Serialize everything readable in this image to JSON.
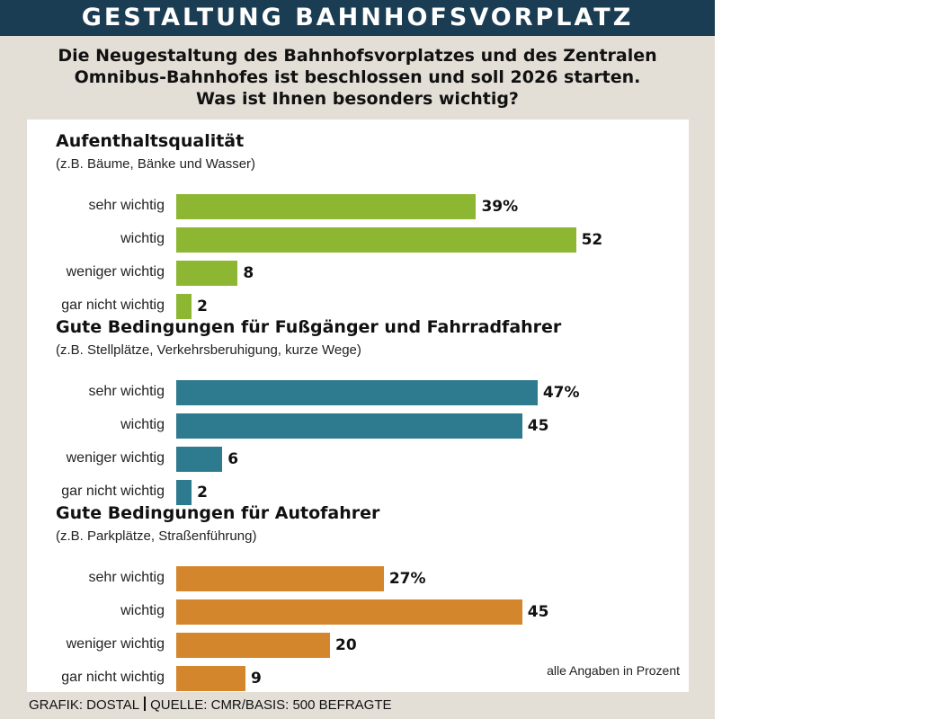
{
  "header": {
    "title": "GESTALTUNG BAHNHOFSVORPLATZ",
    "subtitle_lines": [
      "Die Neugestaltung des Bahnhofsvorplatzes und des Zentralen",
      "Omnibus-Bahnhofes ist beschlossen und soll 2026 starten.",
      "Was ist Ihnen besonders wichtig?"
    ]
  },
  "chart_data": {
    "type": "bar",
    "orientation": "horizontal",
    "unit_note": "alle Angaben in Prozent",
    "categories": [
      "sehr wichtig",
      "wichtig",
      "weniger wichtig",
      "gar nicht wichtig"
    ],
    "groups": [
      {
        "title": "Aufenthaltsqualität",
        "note": "(z.B. Bäume, Bänke und Wasser)",
        "color": "#8db733",
        "values": [
          39,
          52,
          8,
          2
        ],
        "value_labels": [
          "39%",
          "52",
          "8",
          "2"
        ]
      },
      {
        "title": "Gute Bedingungen für Fußgänger und Fahrradfahrer",
        "note": "(z.B. Stellplätze, Verkehrsberuhigung, kurze Wege)",
        "color": "#2e7a8e",
        "values": [
          47,
          45,
          6,
          2
        ],
        "value_labels": [
          "47%",
          "45",
          "6",
          "2"
        ]
      },
      {
        "title": "Gute Bedingungen für Autofahrer",
        "note": "(z.B. Parkplätze, Straßenführung)",
        "color": "#d4862c",
        "values": [
          27,
          45,
          20,
          9
        ],
        "value_labels": [
          "27%",
          "45",
          "20",
          "9"
        ]
      }
    ]
  },
  "footer": {
    "grafik": "GRAFIK: DOSTAL",
    "quelle": "QUELLE: CMR/BASIS: 500 BEFRAGTE"
  }
}
